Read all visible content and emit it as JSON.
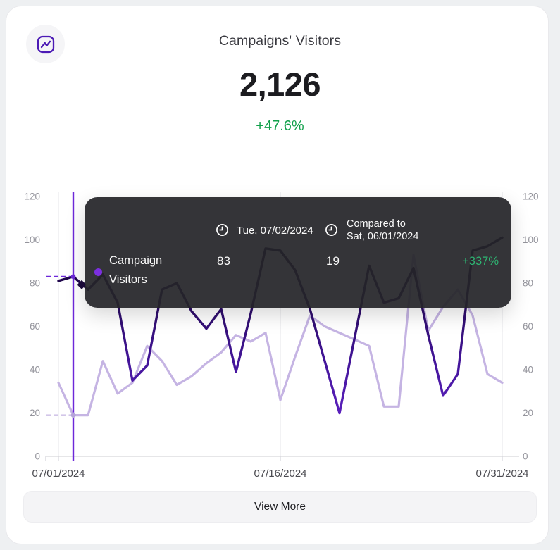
{
  "card": {
    "title": "Campaigns' Visitors",
    "total": "2,126",
    "change": "+47.6%",
    "view_more": "View More"
  },
  "tooltip": {
    "date": "Tue, 07/02/2024",
    "compared_line1": "Compared to",
    "compared_line2": "Sat, 06/01/2024",
    "series_line1": "Campaign",
    "series_line2": "Visitors",
    "value": "83",
    "compare_value": "19",
    "delta": "+337%"
  },
  "colors": {
    "headline_green": "#12a04b",
    "delta_green": "#2eb673",
    "dark_gradient": [
      "#10042a",
      "#1d0744",
      "#44159b",
      "#6d28d9"
    ],
    "light_line": "#c5b4e3",
    "crosshair": "#6d28d9",
    "light_marker": "#b6a4db",
    "dark_marker": "#1c0a3c",
    "grid": "#e8e8ec",
    "axis": "#d6d6db",
    "tick_label": "#94949c",
    "date_label": "#4a4a50",
    "icon_purple": "#4c1bb5"
  },
  "chart_data": {
    "type": "line",
    "title": "Campaigns' Visitors",
    "ylim": [
      0,
      120
    ],
    "y_ticks": [
      0,
      20,
      40,
      60,
      80,
      100,
      120
    ],
    "x_tick_indices": [
      0,
      15,
      30
    ],
    "x_tick_labels": [
      "07/01/2024",
      "07/16/2024",
      "07/31/2024"
    ],
    "hover_index": 1,
    "grid": "vertical-only",
    "legend_position": "none",
    "x": [
      "07/01/2024",
      "07/02/2024",
      "07/03/2024",
      "07/04/2024",
      "07/05/2024",
      "07/06/2024",
      "07/07/2024",
      "07/08/2024",
      "07/09/2024",
      "07/10/2024",
      "07/11/2024",
      "07/12/2024",
      "07/13/2024",
      "07/14/2024",
      "07/15/2024",
      "07/16/2024",
      "07/17/2024",
      "07/18/2024",
      "07/19/2024",
      "07/20/2024",
      "07/21/2024",
      "07/22/2024",
      "07/23/2024",
      "07/24/2024",
      "07/25/2024",
      "07/26/2024",
      "07/27/2024",
      "07/28/2024",
      "07/29/2024",
      "07/30/2024",
      "07/31/2024"
    ],
    "series": [
      {
        "name": "Campaign Visitors",
        "values": [
          81,
          83,
          77,
          84,
          71,
          35,
          42,
          77,
          80,
          67,
          59,
          68,
          39,
          66,
          96,
          95,
          86,
          68,
          44,
          20,
          54,
          88,
          71,
          73,
          87,
          56,
          28,
          38,
          95,
          97,
          101
        ]
      },
      {
        "name": "Compared to Sat, 06/01/2024",
        "values": [
          34,
          19,
          19,
          44,
          29,
          34,
          51,
          44,
          33,
          37,
          43,
          48,
          56,
          53,
          57,
          26,
          46,
          65,
          60,
          57,
          54,
          51,
          23,
          23,
          93,
          58,
          69,
          77,
          65,
          38,
          34
        ]
      }
    ]
  }
}
